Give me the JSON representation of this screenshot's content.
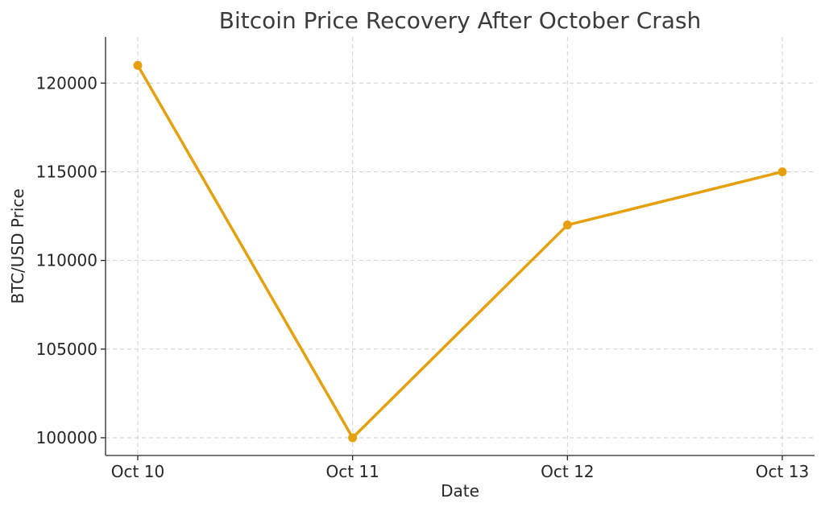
{
  "chart_data": {
    "type": "line",
    "title": "Bitcoin Price Recovery After October Crash",
    "xlabel": "Date",
    "ylabel": "BTC/USD Price",
    "categories": [
      "Oct 10",
      "Oct 11",
      "Oct 12",
      "Oct 13"
    ],
    "series": [
      {
        "values": [
          121000,
          100000,
          112000,
          115000
        ],
        "color": "#e5a00d"
      }
    ],
    "yticks": [
      100000,
      105000,
      110000,
      115000,
      120000
    ],
    "ylim": [
      99000,
      122600
    ],
    "grid": true,
    "legend": "none"
  }
}
